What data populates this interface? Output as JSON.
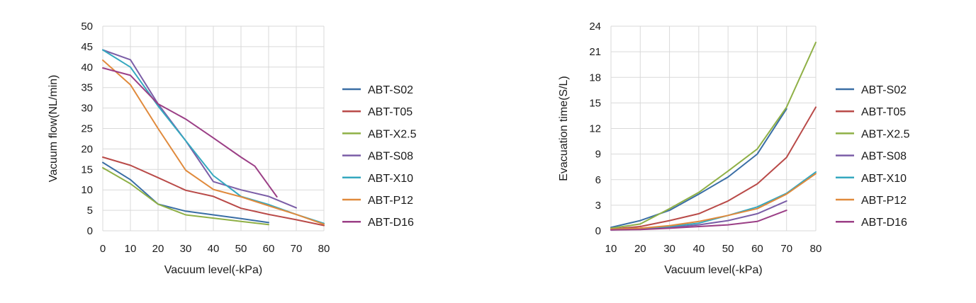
{
  "chart_data": [
    {
      "type": "line",
      "title": "",
      "xlabel": "Vacuum level(-kPa)",
      "ylabel": "Vacuum flow(NL/min)",
      "xlim": [
        0,
        80
      ],
      "ylim": [
        0,
        50
      ],
      "xticks": [
        "0",
        "10",
        "20",
        "30",
        "40",
        "50",
        "60",
        "70",
        "80"
      ],
      "yticks": [
        "0",
        "5",
        "10",
        "15",
        "20",
        "25",
        "30",
        "35",
        "40",
        "45",
        "50"
      ],
      "grid": true,
      "legend": "right",
      "series": [
        {
          "name": "ABT-S02",
          "color": "#3a6ea5",
          "points": [
            [
              0,
              16.7
            ],
            [
              10,
              12.5
            ],
            [
              20,
              6.5
            ],
            [
              30,
              4.8
            ],
            [
              40,
              3.9
            ],
            [
              50,
              3.0
            ],
            [
              60,
              2.0
            ]
          ]
        },
        {
          "name": "ABT-T05",
          "color": "#b94a48",
          "points": [
            [
              0,
              18
            ],
            [
              10,
              16
            ],
            [
              20,
              13
            ],
            [
              30,
              9.9
            ],
            [
              40,
              8.4
            ],
            [
              50,
              5.5
            ],
            [
              60,
              4.0
            ],
            [
              70,
              2.7
            ],
            [
              80,
              1.3
            ]
          ]
        },
        {
          "name": "ABT-X2.5",
          "color": "#8fb046",
          "points": [
            [
              0,
              15.4
            ],
            [
              10,
              11.5
            ],
            [
              20,
              6.5
            ],
            [
              30,
              3.9
            ],
            [
              40,
              3.1
            ],
            [
              50,
              2.3
            ],
            [
              60,
              1.5
            ]
          ]
        },
        {
          "name": "ABT-S08",
          "color": "#7b5ea7",
          "points": [
            [
              0,
              44.2
            ],
            [
              10,
              41.8
            ],
            [
              20,
              31.0
            ],
            [
              30,
              22.0
            ],
            [
              40,
              12.0
            ],
            [
              50,
              10.0
            ],
            [
              60,
              8.4
            ],
            [
              70,
              5.6
            ]
          ]
        },
        {
          "name": "ABT-X10",
          "color": "#35a8bf",
          "points": [
            [
              0,
              44.2
            ],
            [
              10,
              40.0
            ],
            [
              20,
              30.5
            ],
            [
              30,
              22.0
            ],
            [
              40,
              13.5
            ],
            [
              50,
              8.4
            ],
            [
              60,
              6.4
            ],
            [
              70,
              4.0
            ],
            [
              80,
              1.8
            ]
          ]
        },
        {
          "name": "ABT-P12",
          "color": "#e08a3c",
          "points": [
            [
              0,
              41.7
            ],
            [
              10,
              35.7
            ],
            [
              20,
              25.0
            ],
            [
              30,
              14.8
            ],
            [
              40,
              10.1
            ],
            [
              50,
              8.3
            ],
            [
              60,
              6.1
            ],
            [
              70,
              4.0
            ],
            [
              80,
              1.6
            ]
          ]
        },
        {
          "name": "ABT-D16",
          "color": "#9b3f86",
          "points": [
            [
              0,
              39.8
            ],
            [
              10,
              38.0
            ],
            [
              20,
              31.0
            ],
            [
              30,
              27.3
            ],
            [
              40,
              22.7
            ],
            [
              50,
              18.0
            ],
            [
              55,
              15.8
            ],
            [
              63,
              8.3
            ]
          ]
        }
      ]
    },
    {
      "type": "line",
      "title": "",
      "xlabel": "Vacuum level(-kPa)",
      "ylabel": "Evacuation time(S/L)",
      "xlim": [
        10,
        80
      ],
      "ylim": [
        0,
        24
      ],
      "xticks": [
        "10",
        "20",
        "30",
        "40",
        "50",
        "60",
        "70",
        "80"
      ],
      "yticks": [
        "0",
        "3",
        "6",
        "9",
        "12",
        "15",
        "18",
        "21",
        "24"
      ],
      "grid": true,
      "legend": "right",
      "series": [
        {
          "name": "ABT-S02",
          "color": "#3a6ea5",
          "points": [
            [
              10,
              0.4
            ],
            [
              20,
              1.2
            ],
            [
              30,
              2.4
            ],
            [
              40,
              4.3
            ],
            [
              50,
              6.3
            ],
            [
              60,
              9.0
            ],
            [
              70,
              14.3
            ]
          ]
        },
        {
          "name": "ABT-T05",
          "color": "#b94a48",
          "points": [
            [
              10,
              0.2
            ],
            [
              20,
              0.5
            ],
            [
              30,
              1.2
            ],
            [
              40,
              2.0
            ],
            [
              50,
              3.5
            ],
            [
              60,
              5.5
            ],
            [
              70,
              8.6
            ],
            [
              80,
              14.5
            ]
          ]
        },
        {
          "name": "ABT-X2.5",
          "color": "#8fb046",
          "points": [
            [
              10,
              0.3
            ],
            [
              20,
              0.8
            ],
            [
              30,
              2.6
            ],
            [
              40,
              4.5
            ],
            [
              50,
              7.0
            ],
            [
              60,
              9.6
            ],
            [
              70,
              14.5
            ],
            [
              80,
              22.1
            ]
          ]
        },
        {
          "name": "ABT-S08",
          "color": "#7b5ea7",
          "points": [
            [
              10,
              0.1
            ],
            [
              20,
              0.2
            ],
            [
              30,
              0.4
            ],
            [
              40,
              0.7
            ],
            [
              50,
              1.2
            ],
            [
              60,
              2.0
            ],
            [
              70,
              3.5
            ]
          ]
        },
        {
          "name": "ABT-X10",
          "color": "#35a8bf",
          "points": [
            [
              10,
              0.2
            ],
            [
              20,
              0.3
            ],
            [
              30,
              0.5
            ],
            [
              40,
              0.9
            ],
            [
              50,
              1.8
            ],
            [
              60,
              2.8
            ],
            [
              70,
              4.4
            ],
            [
              80,
              6.9
            ]
          ]
        },
        {
          "name": "ABT-P12",
          "color": "#e08a3c",
          "points": [
            [
              10,
              0.2
            ],
            [
              20,
              0.3
            ],
            [
              30,
              0.6
            ],
            [
              40,
              1.1
            ],
            [
              50,
              1.8
            ],
            [
              60,
              2.6
            ],
            [
              70,
              4.3
            ],
            [
              80,
              6.7
            ]
          ]
        },
        {
          "name": "ABT-D16",
          "color": "#9b3f86",
          "points": [
            [
              10,
              0.1
            ],
            [
              20,
              0.15
            ],
            [
              30,
              0.3
            ],
            [
              40,
              0.5
            ],
            [
              50,
              0.7
            ],
            [
              60,
              1.1
            ],
            [
              70,
              2.4
            ]
          ]
        }
      ]
    }
  ]
}
